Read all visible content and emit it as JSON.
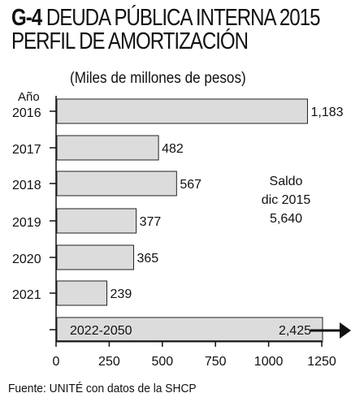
{
  "header": {
    "code": "G-4",
    "title_line1": "DEUDA PÚBLICA INTERNA 2015",
    "title_line2": "PERFIL DE AMORTIZACIÓN",
    "subtitle": "(Miles de millones de pesos)"
  },
  "chart_data": {
    "type": "bar",
    "orientation": "horizontal",
    "category_axis_label": "Año",
    "categories": [
      "2016",
      "2017",
      "2018",
      "2019",
      "2020",
      "2021",
      "2022-2050"
    ],
    "values": [
      1183,
      482,
      567,
      377,
      365,
      239,
      2425
    ],
    "value_labels": [
      "1,183",
      "482",
      "567",
      "377",
      "365",
      "239",
      "2,425"
    ],
    "xlim": [
      0,
      1250
    ],
    "x_ticks": [
      "0",
      "250",
      "500",
      "750",
      "1000",
      "1250"
    ],
    "x_tick_values": [
      0,
      250,
      500,
      750,
      1000,
      1250
    ],
    "grid": false,
    "bar_color": "#dcdcdc",
    "bar_stroke": "#222222",
    "last_bar_note": "bar exceeds axis, continues with arrow",
    "annotation": {
      "line1": "Saldo",
      "line2": "dic 2015",
      "line3": "5,640"
    }
  },
  "source": "Fuente: UNITÉ con datos de la SHCP"
}
